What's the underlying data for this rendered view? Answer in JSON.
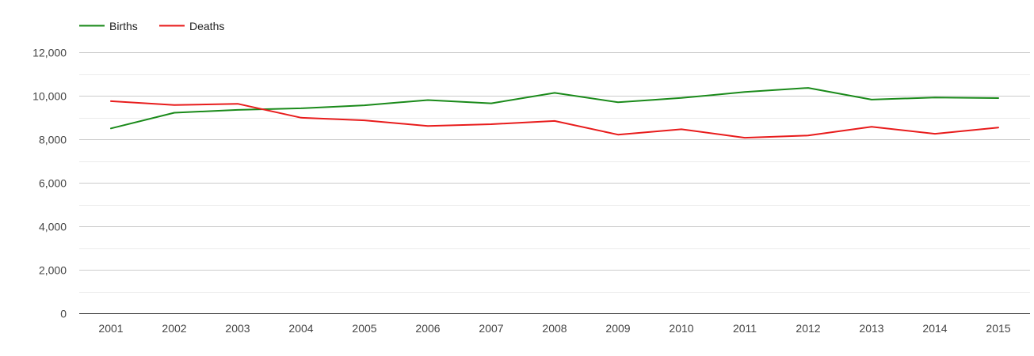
{
  "chart_data": {
    "type": "line",
    "title": "",
    "xlabel": "",
    "ylabel": "",
    "x": [
      "2001",
      "2002",
      "2003",
      "2004",
      "2005",
      "2006",
      "2007",
      "2008",
      "2009",
      "2010",
      "2011",
      "2012",
      "2013",
      "2014",
      "2015"
    ],
    "ylim": [
      0,
      12000
    ],
    "yticks": [
      0,
      2000,
      4000,
      6000,
      8000,
      10000,
      12000
    ],
    "ytick_labels": [
      "0",
      "2,000",
      "4,000",
      "6,000",
      "8,000",
      "10,000",
      "12,000"
    ],
    "grid": true,
    "legend_position": "top-left",
    "series": [
      {
        "name": "Births",
        "color": "#1a8a1a",
        "values": [
          8500,
          9220,
          9350,
          9420,
          9560,
          9800,
          9650,
          10130,
          9700,
          9900,
          10170,
          10360,
          9820,
          9920,
          9890
        ]
      },
      {
        "name": "Deaths",
        "color": "#e81c1c",
        "values": [
          9750,
          9570,
          9630,
          8990,
          8870,
          8610,
          8690,
          8840,
          8210,
          8460,
          8070,
          8170,
          8570,
          8250,
          8540
        ]
      }
    ]
  }
}
